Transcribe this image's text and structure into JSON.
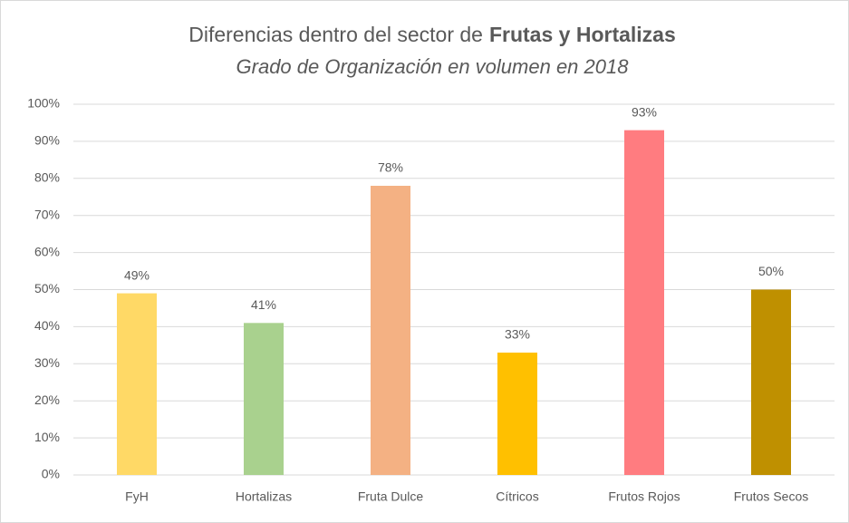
{
  "chart_data": {
    "type": "bar",
    "title": [
      "Diferencias dentro del sector de",
      "Frutas y Hortalizas"
    ],
    "subtitle": "Grado de Organización en volumen en 2018",
    "categories": [
      "FyH",
      "Hortalizas",
      "Fruta Dulce",
      "Cítricos",
      "Frutos Rojos",
      "Frutos Secos"
    ],
    "values": [
      49,
      41,
      78,
      33,
      93,
      50
    ],
    "value_labels": [
      "49%",
      "41%",
      "78%",
      "33%",
      "93%",
      "50%"
    ],
    "colors": [
      "#ffd966",
      "#a9d18e",
      "#f4b183",
      "#ffc000",
      "#ff7c80",
      "#bf9000"
    ],
    "ylim": [
      0,
      100
    ],
    "yticks": [
      {
        "value": 0,
        "label": "0%"
      },
      {
        "value": 10,
        "label": "10%"
      },
      {
        "value": 20,
        "label": "20%"
      },
      {
        "value": 30,
        "label": "30%"
      },
      {
        "value": 40,
        "label": "40%"
      },
      {
        "value": 50,
        "label": "50%"
      },
      {
        "value": 60,
        "label": "60%"
      },
      {
        "value": 70,
        "label": "70%"
      },
      {
        "value": 80,
        "label": "80%"
      },
      {
        "value": 90,
        "label": "90%"
      },
      {
        "value": 100,
        "label": "100%"
      }
    ],
    "grid": true
  }
}
